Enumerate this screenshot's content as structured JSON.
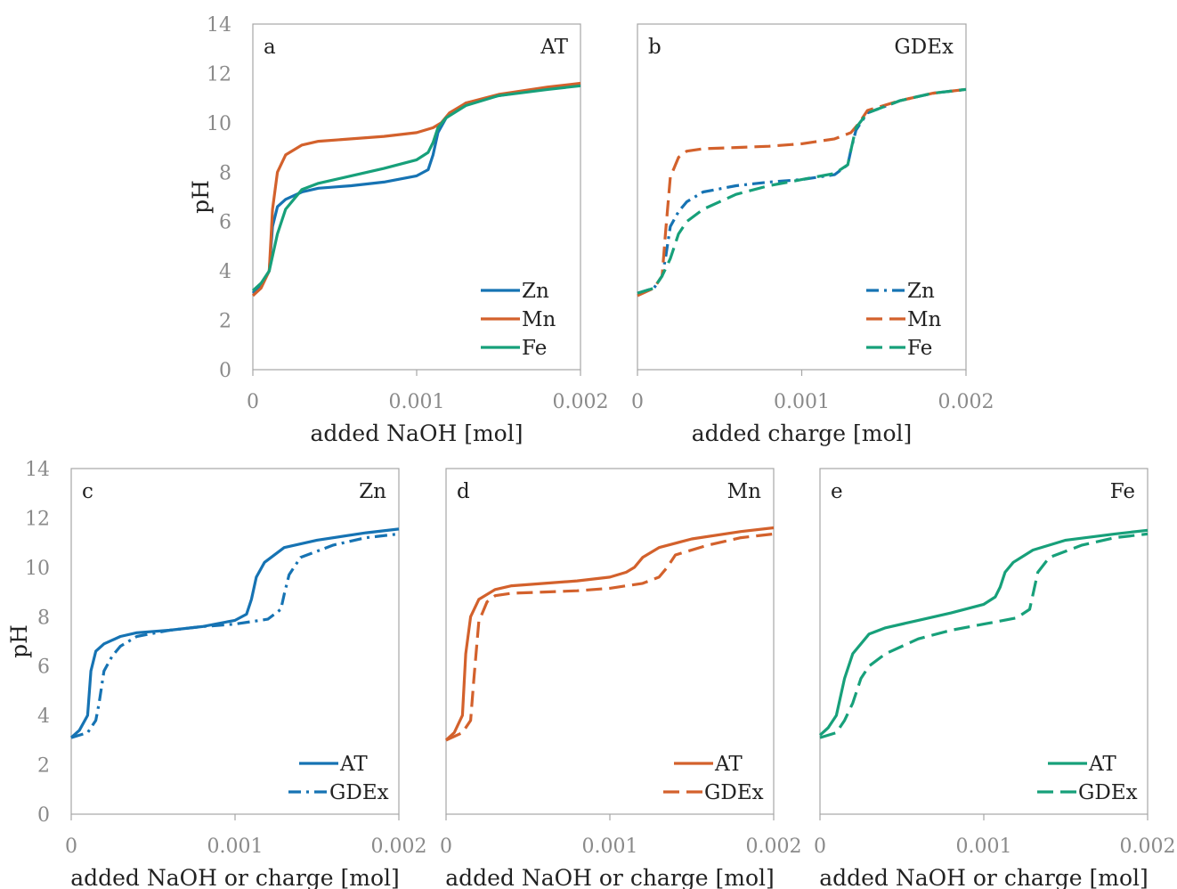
{
  "figure": {
    "ylabel": "pH"
  },
  "colors": {
    "Zn": "#1673b3",
    "Mn": "#d3612c",
    "Fe": "#17a07a"
  },
  "chart_data": [
    {
      "id": "a",
      "type": "line",
      "panel_label": "a",
      "tag": "AT",
      "xlabel": "added NaOH [mol]",
      "ylabel": "pH",
      "xlim": [
        0,
        0.002
      ],
      "ylim": [
        0,
        14
      ],
      "xticks": [
        "0",
        "0.001",
        "0.002"
      ],
      "yticks": [
        "0",
        "2",
        "4",
        "6",
        "8",
        "10",
        "12",
        "14"
      ],
      "legend_position": "bottom-right",
      "series": [
        {
          "name": "Zn",
          "style": "solid",
          "color_key": "Zn",
          "x": [
            0,
            5e-05,
            0.0001,
            0.00012,
            0.00015,
            0.0002,
            0.0003,
            0.0004,
            0.0006,
            0.0008,
            0.001,
            0.00107,
            0.0011,
            0.00113,
            0.00118,
            0.0013,
            0.0015,
            0.0018,
            0.002
          ],
          "y": [
            3.1,
            3.4,
            4.0,
            5.8,
            6.6,
            6.9,
            7.2,
            7.35,
            7.45,
            7.6,
            7.85,
            8.1,
            8.7,
            9.6,
            10.2,
            10.8,
            11.1,
            11.4,
            11.55
          ]
        },
        {
          "name": "Mn",
          "style": "solid",
          "color_key": "Mn",
          "x": [
            0,
            5e-05,
            0.0001,
            0.00012,
            0.00015,
            0.0002,
            0.0003,
            0.0004,
            0.0006,
            0.0008,
            0.001,
            0.0011,
            0.00115,
            0.0012,
            0.0013,
            0.0015,
            0.0018,
            0.002
          ],
          "y": [
            3.0,
            3.3,
            4.0,
            6.5,
            8.0,
            8.7,
            9.1,
            9.25,
            9.35,
            9.45,
            9.6,
            9.8,
            10.0,
            10.4,
            10.8,
            11.15,
            11.45,
            11.6
          ]
        },
        {
          "name": "Fe",
          "style": "solid",
          "color_key": "Fe",
          "x": [
            0,
            5e-05,
            0.0001,
            0.00015,
            0.0002,
            0.0003,
            0.0004,
            0.0006,
            0.0008,
            0.001,
            0.00107,
            0.0011,
            0.00113,
            0.00118,
            0.0013,
            0.0015,
            0.0018,
            0.002
          ],
          "y": [
            3.2,
            3.5,
            4.0,
            5.5,
            6.5,
            7.3,
            7.55,
            7.85,
            8.15,
            8.5,
            8.8,
            9.2,
            9.8,
            10.2,
            10.7,
            11.1,
            11.35,
            11.5
          ]
        }
      ]
    },
    {
      "id": "b",
      "type": "line",
      "panel_label": "b",
      "tag": "GDEx",
      "xlabel": "added charge [mol]",
      "ylabel": "",
      "xlim": [
        0,
        0.002
      ],
      "ylim": [
        0,
        14
      ],
      "xticks": [
        "0",
        "0.001",
        "0.002"
      ],
      "yticks": [],
      "legend_position": "bottom-right",
      "series": [
        {
          "name": "Zn",
          "style": "dashdot",
          "color_key": "Zn",
          "x": [
            0,
            0.0001,
            0.00015,
            0.00017,
            0.0002,
            0.00025,
            0.0003,
            0.0004,
            0.0006,
            0.0008,
            0.001,
            0.0012,
            0.00128,
            0.0013,
            0.00133,
            0.0014,
            0.0016,
            0.0018,
            0.002
          ],
          "y": [
            3.1,
            3.3,
            3.8,
            4.5,
            5.8,
            6.4,
            6.8,
            7.2,
            7.45,
            7.6,
            7.7,
            7.9,
            8.3,
            8.9,
            9.7,
            10.4,
            10.9,
            11.2,
            11.35
          ]
        },
        {
          "name": "Mn",
          "style": "dashed",
          "color_key": "Mn",
          "x": [
            0,
            0.0001,
            0.00015,
            0.00017,
            0.0002,
            0.00025,
            0.0003,
            0.0004,
            0.0006,
            0.0008,
            0.001,
            0.0012,
            0.0013,
            0.00135,
            0.0014,
            0.0016,
            0.0018,
            0.002
          ],
          "y": [
            3.0,
            3.3,
            3.8,
            5.5,
            7.8,
            8.6,
            8.85,
            8.95,
            9.0,
            9.05,
            9.15,
            9.35,
            9.6,
            10.0,
            10.5,
            10.9,
            11.2,
            11.35
          ]
        },
        {
          "name": "Fe",
          "style": "dashed",
          "color_key": "Fe",
          "x": [
            0,
            0.0001,
            0.00015,
            0.0002,
            0.00025,
            0.0003,
            0.0004,
            0.0006,
            0.0008,
            0.001,
            0.0012,
            0.00128,
            0.0013,
            0.00133,
            0.0014,
            0.0016,
            0.0018,
            0.002
          ],
          "y": [
            3.1,
            3.3,
            3.8,
            4.5,
            5.5,
            6.0,
            6.5,
            7.1,
            7.45,
            7.7,
            7.95,
            8.3,
            8.9,
            9.8,
            10.4,
            10.9,
            11.2,
            11.35
          ]
        }
      ]
    },
    {
      "id": "c",
      "type": "line",
      "panel_label": "c",
      "tag": "Zn",
      "xlabel": "added NaOH or charge [mol]",
      "ylabel": "pH",
      "xlim": [
        0,
        0.002
      ],
      "ylim": [
        0,
        14
      ],
      "xticks": [
        "0",
        "0.001",
        "0.002"
      ],
      "yticks": [
        "0",
        "2",
        "4",
        "6",
        "8",
        "10",
        "12",
        "14"
      ],
      "legend_position": "bottom-right",
      "series": [
        {
          "name": "AT",
          "style": "solid",
          "color_key": "Zn",
          "x": [
            0,
            5e-05,
            0.0001,
            0.00012,
            0.00015,
            0.0002,
            0.0003,
            0.0004,
            0.0006,
            0.0008,
            0.001,
            0.00107,
            0.0011,
            0.00113,
            0.00118,
            0.0013,
            0.0015,
            0.0018,
            0.002
          ],
          "y": [
            3.1,
            3.4,
            4.0,
            5.8,
            6.6,
            6.9,
            7.2,
            7.35,
            7.45,
            7.6,
            7.85,
            8.1,
            8.7,
            9.6,
            10.2,
            10.8,
            11.1,
            11.4,
            11.55
          ]
        },
        {
          "name": "GDEx",
          "style": "dashdot",
          "color_key": "Zn",
          "x": [
            0,
            0.0001,
            0.00015,
            0.00017,
            0.0002,
            0.00025,
            0.0003,
            0.0004,
            0.0006,
            0.0008,
            0.001,
            0.0012,
            0.00128,
            0.0013,
            0.00133,
            0.0014,
            0.0016,
            0.0018,
            0.002
          ],
          "y": [
            3.1,
            3.3,
            3.8,
            4.5,
            5.8,
            6.4,
            6.8,
            7.2,
            7.45,
            7.6,
            7.7,
            7.9,
            8.3,
            8.9,
            9.7,
            10.4,
            10.9,
            11.2,
            11.35
          ]
        }
      ]
    },
    {
      "id": "d",
      "type": "line",
      "panel_label": "d",
      "tag": "Mn",
      "xlabel": "added NaOH or charge [mol]",
      "ylabel": "",
      "xlim": [
        0,
        0.002
      ],
      "ylim": [
        0,
        14
      ],
      "xticks": [
        "0",
        "0.001",
        "0.002"
      ],
      "yticks": [],
      "legend_position": "bottom-right",
      "series": [
        {
          "name": "AT",
          "style": "solid",
          "color_key": "Mn",
          "x": [
            0,
            5e-05,
            0.0001,
            0.00012,
            0.00015,
            0.0002,
            0.0003,
            0.0004,
            0.0006,
            0.0008,
            0.001,
            0.0011,
            0.00115,
            0.0012,
            0.0013,
            0.0015,
            0.0018,
            0.002
          ],
          "y": [
            3.0,
            3.3,
            4.0,
            6.5,
            8.0,
            8.7,
            9.1,
            9.25,
            9.35,
            9.45,
            9.6,
            9.8,
            10.0,
            10.4,
            10.8,
            11.15,
            11.45,
            11.6
          ]
        },
        {
          "name": "GDEx",
          "style": "dashed",
          "color_key": "Mn",
          "x": [
            0,
            0.0001,
            0.00015,
            0.00017,
            0.0002,
            0.00025,
            0.0003,
            0.0004,
            0.0006,
            0.0008,
            0.001,
            0.0012,
            0.0013,
            0.00135,
            0.0014,
            0.0016,
            0.0018,
            0.002
          ],
          "y": [
            3.0,
            3.3,
            3.8,
            5.5,
            7.8,
            8.6,
            8.85,
            8.95,
            9.0,
            9.05,
            9.15,
            9.35,
            9.6,
            10.0,
            10.5,
            10.9,
            11.2,
            11.35
          ]
        }
      ]
    },
    {
      "id": "e",
      "type": "line",
      "panel_label": "e",
      "tag": "Fe",
      "xlabel": "added NaOH or charge [mol]",
      "ylabel": "",
      "xlim": [
        0,
        0.002
      ],
      "ylim": [
        0,
        14
      ],
      "xticks": [
        "0",
        "0.001",
        "0.002"
      ],
      "yticks": [],
      "legend_position": "bottom-right",
      "series": [
        {
          "name": "AT",
          "style": "solid",
          "color_key": "Fe",
          "x": [
            0,
            5e-05,
            0.0001,
            0.00015,
            0.0002,
            0.0003,
            0.0004,
            0.0006,
            0.0008,
            0.001,
            0.00107,
            0.0011,
            0.00113,
            0.00118,
            0.0013,
            0.0015,
            0.0018,
            0.002
          ],
          "y": [
            3.2,
            3.5,
            4.0,
            5.5,
            6.5,
            7.3,
            7.55,
            7.85,
            8.15,
            8.5,
            8.8,
            9.2,
            9.8,
            10.2,
            10.7,
            11.1,
            11.35,
            11.5
          ]
        },
        {
          "name": "GDEx",
          "style": "dashed",
          "color_key": "Fe",
          "x": [
            0,
            0.0001,
            0.00015,
            0.0002,
            0.00025,
            0.0003,
            0.0004,
            0.0006,
            0.0008,
            0.001,
            0.0012,
            0.00128,
            0.0013,
            0.00133,
            0.0014,
            0.0016,
            0.0018,
            0.002
          ],
          "y": [
            3.1,
            3.3,
            3.8,
            4.5,
            5.5,
            6.0,
            6.5,
            7.1,
            7.45,
            7.7,
            7.95,
            8.3,
            8.9,
            9.8,
            10.4,
            10.9,
            11.2,
            11.35
          ]
        }
      ]
    }
  ]
}
